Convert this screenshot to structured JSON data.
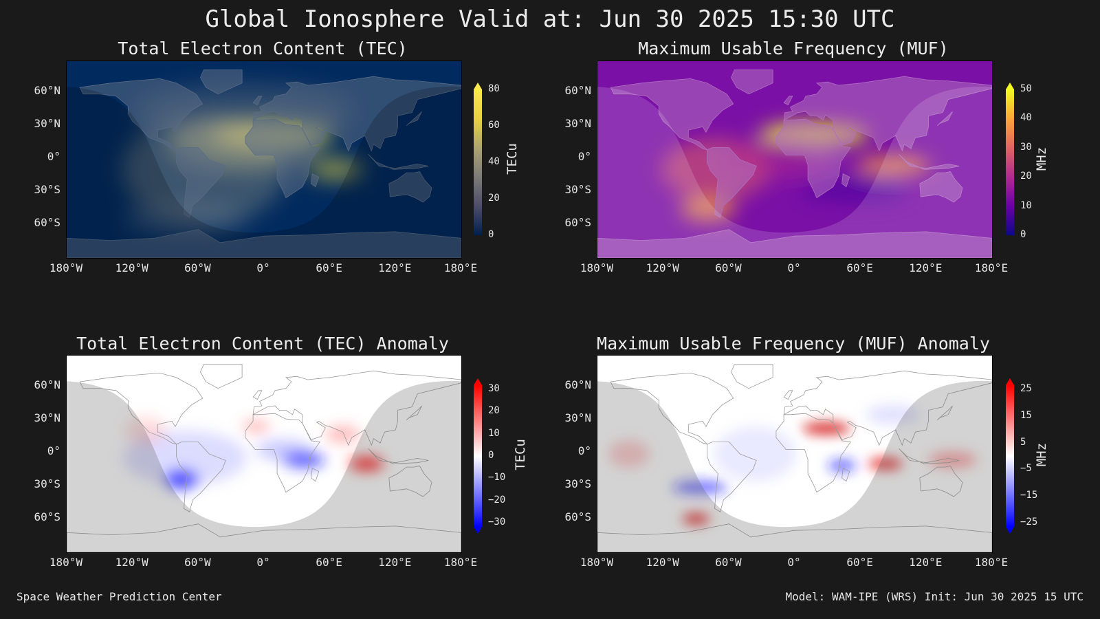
{
  "title": "Global Ionosphere Valid at: Jun 30 2025 15:30 UTC",
  "lat_labels": [
    "60°N",
    "30°N",
    "0°",
    "30°S",
    "60°S"
  ],
  "lon_labels": [
    "180°W",
    "120°W",
    "60°W",
    "0°",
    "60°E",
    "120°E",
    "180°E"
  ],
  "panels": [
    {
      "title": "Total Electron Content (TEC)",
      "unit": "TECu",
      "ticks": [
        "80",
        "60",
        "40",
        "20",
        "0"
      ],
      "colormap": "cividis",
      "colors": [
        "#00204c",
        "#4d4d6b",
        "#7c7b78",
        "#aea371",
        "#e7d23f",
        "#fbe94c"
      ]
    },
    {
      "title": "Maximum Usable Frequency (MUF)",
      "unit": "MHz",
      "ticks": [
        "50",
        "40",
        "30",
        "20",
        "10",
        "0"
      ],
      "colormap": "plasma",
      "colors": [
        "#0d0887",
        "#6a00a8",
        "#b12a90",
        "#e16462",
        "#fca636",
        "#f0f921"
      ]
    },
    {
      "title": "Total Electron Content (TEC) Anomaly",
      "unit": "TECu",
      "ticks": [
        "30",
        "20",
        "10",
        "0",
        "−10",
        "−20",
        "−30"
      ],
      "colormap": "bwr",
      "colors": [
        "#0000ff",
        "#8080ff",
        "#ffffff",
        "#ff8080",
        "#ff0000"
      ]
    },
    {
      "title": "Maximum Usable Frequency (MUF) Anomaly",
      "unit": "MHz",
      "ticks": [
        "25",
        "15",
        "5",
        "−5",
        "−15",
        "−25"
      ],
      "colormap": "bwr",
      "colors": [
        "#0000ff",
        "#8080ff",
        "#ffffff",
        "#ff8080",
        "#ff0000"
      ]
    }
  ],
  "footer": {
    "left": "Space Weather Prediction Center",
    "right": "Model: WAM-IPE (WRS) Init: Jun 30 2025 15 UTC"
  }
}
